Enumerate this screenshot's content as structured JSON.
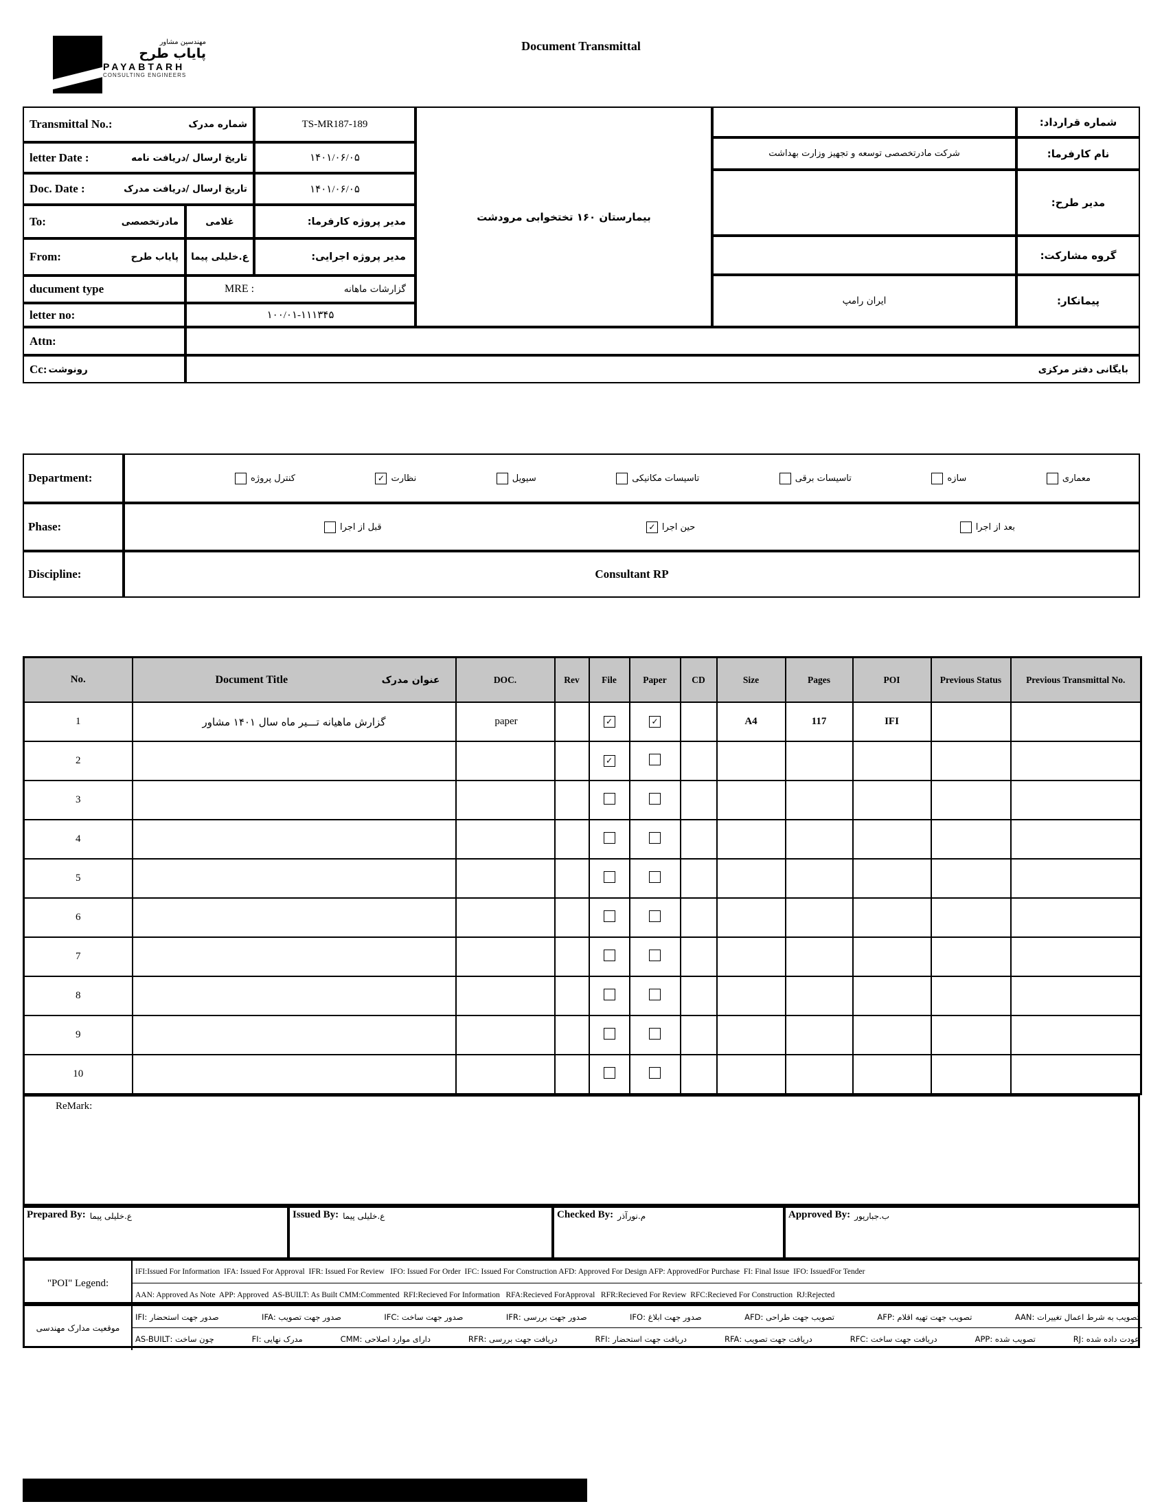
{
  "page": {
    "title": "Document Transmittal"
  },
  "logo": {
    "fa_tagline": "مهندسین مشاور",
    "fa_name": "پایاب طرح",
    "en_name": "PAYABTARH",
    "en_tagline": "CONSULTING ENGINEERS"
  },
  "info": {
    "transmittal_label_en": "Transmittal No.:",
    "transmittal_label_fa": "شماره مدرک",
    "transmittal_no": "TS-MR187-189",
    "letter_date_label_en": "letter Date :",
    "letter_date_label_fa": "تاریخ ارسال /دریافت نامه",
    "letter_date": "۱۴۰۱/۰۶/۰۵",
    "doc_date_label_en": "Doc. Date :",
    "doc_date_label_fa": "تاریخ ارسال /دریافت مدرک",
    "doc_date": "۱۴۰۱/۰۶/۰۵",
    "to_label": "To:",
    "to_value": "مادرتخصصی",
    "to_name": "غلامی",
    "client_pm_label": "مدیر پروژه کارفرما:",
    "from_label": "From:",
    "from_value": "پایاب طرح",
    "from_name": "ع.خلیلی پیما",
    "exec_pm_label": "مدیر پروژه اجرایی:",
    "doc_type_label": "ducument type",
    "doc_type_code": "MRE   :",
    "doc_type_fa": "گزارشات ماهانه",
    "letter_no_label": "letter no:",
    "letter_no": "۱۰۰/۰۱-۱۱۱۳۴۵",
    "attn_label": "Attn:",
    "attn_value": "",
    "cc_label_en": "Cc:",
    "cc_label_fa": "رونوشت",
    "cc_value": "بایگانی دفتر مرکزی",
    "project_name": "بیمارستان ۱۶۰ تختخوابی مرودشت",
    "contract_no_label": "شماره قرارداد:",
    "contract_no": "",
    "client_name_label": "نام کارفرما:",
    "client_name": "شرکت مادرتخصصی توسعه و تجهیز وزارت بهداشت",
    "design_manager_label": "مدیر طرح:",
    "design_manager": "",
    "jv_label": "گروه مشارکت:",
    "jv_value": "",
    "contractor_label": "پیمانکار:",
    "contractor_name": "ایران رامپ"
  },
  "classification": {
    "department_label": "Department:",
    "departments": [
      {
        "label": "کنترل پروژه",
        "checked": false
      },
      {
        "label": "نظارت",
        "checked": true
      },
      {
        "label": "سیویل",
        "checked": false
      },
      {
        "label": "تاسیسات مکانیکی",
        "checked": false
      },
      {
        "label": "تاسیسات برقی",
        "checked": false
      },
      {
        "label": "سازه",
        "checked": false
      },
      {
        "label": "معماری",
        "checked": false
      }
    ],
    "phase_label": "Phase:",
    "phases": [
      {
        "label": "قبل از اجرا",
        "checked": false
      },
      {
        "label": "حین اجرا",
        "checked": true
      },
      {
        "label": "بعد از اجرا",
        "checked": false
      }
    ],
    "discipline_label": "Discipline:",
    "discipline_value": "Consultant RP"
  },
  "doc_table": {
    "headers": {
      "no": "No.",
      "title_en": "Document Title",
      "title_fa": "عنوان مدرک",
      "doc": "DOC.",
      "rev": "Rev",
      "file": "File",
      "paper": "Paper",
      "cd": "CD",
      "size": "Size",
      "pages": "Pages",
      "poi": "POI",
      "prev_status": "Previous Status",
      "prev_no": "Previous Transmittal No."
    },
    "rows": [
      {
        "no": "1",
        "title": "گزارش ماهیانه تـــیر ماه سال ۱۴۰۱ مشاور",
        "doc": "paper",
        "rev": "",
        "file": true,
        "paper": true,
        "cd": "",
        "size": "A4",
        "pages": "117",
        "poi": "IFI",
        "prev_status": "",
        "prev_no": ""
      },
      {
        "no": "2",
        "title": "",
        "doc": "",
        "rev": "",
        "file": true,
        "paper": false,
        "cd": "",
        "size": "",
        "pages": "",
        "poi": "",
        "prev_status": "",
        "prev_no": ""
      },
      {
        "no": "3",
        "title": "",
        "doc": "",
        "rev": "",
        "file": false,
        "paper": false,
        "cd": "",
        "size": "",
        "pages": "",
        "poi": "",
        "prev_status": "",
        "prev_no": ""
      },
      {
        "no": "4",
        "title": "",
        "doc": "",
        "rev": "",
        "file": false,
        "paper": false,
        "cd": "",
        "size": "",
        "pages": "",
        "poi": "",
        "prev_status": "",
        "prev_no": ""
      },
      {
        "no": "5",
        "title": "",
        "doc": "",
        "rev": "",
        "file": false,
        "paper": false,
        "cd": "",
        "size": "",
        "pages": "",
        "poi": "",
        "prev_status": "",
        "prev_no": ""
      },
      {
        "no": "6",
        "title": "",
        "doc": "",
        "rev": "",
        "file": false,
        "paper": false,
        "cd": "",
        "size": "",
        "pages": "",
        "poi": "",
        "prev_status": "",
        "prev_no": ""
      },
      {
        "no": "7",
        "title": "",
        "doc": "",
        "rev": "",
        "file": false,
        "paper": false,
        "cd": "",
        "size": "",
        "pages": "",
        "poi": "",
        "prev_status": "",
        "prev_no": ""
      },
      {
        "no": "8",
        "title": "",
        "doc": "",
        "rev": "",
        "file": false,
        "paper": false,
        "cd": "",
        "size": "",
        "pages": "",
        "poi": "",
        "prev_status": "",
        "prev_no": ""
      },
      {
        "no": "9",
        "title": "",
        "doc": "",
        "rev": "",
        "file": false,
        "paper": false,
        "cd": "",
        "size": "",
        "pages": "",
        "poi": "",
        "prev_status": "",
        "prev_no": ""
      },
      {
        "no": "10",
        "title": "",
        "doc": "",
        "rev": "",
        "file": false,
        "paper": false,
        "cd": "",
        "size": "",
        "pages": "",
        "poi": "",
        "prev_status": "",
        "prev_no": ""
      }
    ]
  },
  "remark_label": "ReMark:",
  "signatures": {
    "prepared_label": "Prepared By:",
    "prepared_name": "ع.خلیلی پیما",
    "issued_label": "Issued By:",
    "issued_name": "ع.خلیلی پیما",
    "checked_label": "Checked By:",
    "checked_name": "م.نورآذر",
    "approved_label": "Approved By:",
    "approved_name": "ب.جبارپور"
  },
  "legend": {
    "poi_label": "\"POI\" Legend:",
    "fa_label": "موقعیت مدارک مهندسی",
    "en_line1": "IFI:Issued For Information  IFA: Issued For Approval  IFR: Issued For Review   IFO: Issued For Order  IFC: Issued For Construction AFD: Approved For Design AFP: ApprovedFor Purchase  FI: Final Issue  IFO: IssuedFor Tender",
    "en_line2": "AAN: Approved As Note  APP: Approved  AS-BUILT: As Built CMM:Commented  RFI:Recieved For Information   RFA:Recieved ForApproval   RFR:Recieved For Review  RFC:Recieved For Construction  RJ:Rejected",
    "fa_line1": [
      {
        "code": "IFI",
        "desc": "صدور جهت استحضار"
      },
      {
        "code": "IFA",
        "desc": "صدور جهت تصویب"
      },
      {
        "code": "IFC",
        "desc": "صدور جهت ساخت"
      },
      {
        "code": "IFR",
        "desc": "صدور جهت بررسی"
      },
      {
        "code": "IFO",
        "desc": "صدور جهت ابلاغ"
      },
      {
        "code": "AFD",
        "desc": "تصویب جهت طراحی"
      },
      {
        "code": "AFP",
        "desc": "تصویب جهت تهیه اقلام"
      },
      {
        "code": "AAN",
        "desc": "تصویب به شرط اعمال تغییرات"
      }
    ],
    "fa_line2": [
      {
        "code": "AS-BUILT",
        "desc": "چون ساخت"
      },
      {
        "code": "FI",
        "desc": "مدرک نهایی"
      },
      {
        "code": "CMM",
        "desc": "دارای موارد اصلاحی"
      },
      {
        "code": "RFR",
        "desc": "دریافت جهت بررسی"
      },
      {
        "code": "RFI",
        "desc": "دریافت جهت استحضار"
      },
      {
        "code": "RFA",
        "desc": "دریافت جهت تصویب"
      },
      {
        "code": "RFC",
        "desc": "دریافت جهت ساخت"
      },
      {
        "code": "APP",
        "desc": "تصویب شده"
      },
      {
        "code": "RJ",
        "desc": "عودت داده شده"
      }
    ]
  }
}
